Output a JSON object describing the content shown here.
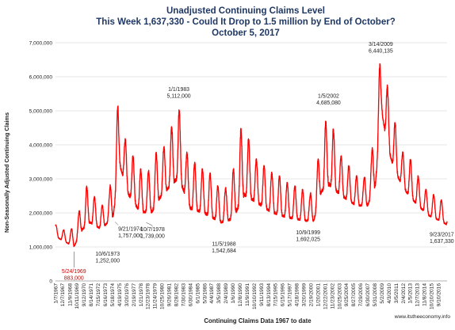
{
  "chart_data": {
    "type": "line",
    "title": "Unadjusted Continuing Claims Level",
    "subtitle": "This Week 1,637,330 - Could It Drop to 1.5 million by End of October?",
    "date_line": "October 5, 2017",
    "ylabel": "Non-Seasonally Adjusted Continuing Claims",
    "xlabel": "Continuing Claims Data 1967 to date",
    "source": "www.itstheeconomy.info",
    "ylim": [
      0,
      7000000
    ],
    "y_ticks": [
      "0",
      "1,000,000",
      "2,000,000",
      "3,000,000",
      "4,000,000",
      "5,000,000",
      "6,000,000",
      "7,000,000"
    ],
    "grid": true,
    "legend": "none",
    "line_color": "#ff0000",
    "x_range": [
      1967.0,
      2017.8
    ],
    "x_ticks": [
      "1/7/1967",
      "12/7/1967",
      "11/9/1968",
      "10/11/1969",
      "9/12/1970",
      "8/14/1971",
      "7/15/1972",
      "6/16/1973",
      "5/18/1974",
      "4/19/1975",
      "3/20/1976",
      "2/19/1977",
      "1/21/1978",
      "12/23/1978",
      "11/24/1979",
      "10/25/1980",
      "9/26/1981",
      "8/28/1982",
      "7/30/1983",
      "6/30/1984",
      "6/1/1985",
      "5/3/1986",
      "4/4/1987",
      "3/5/1988",
      "2/4/1989",
      "1/6/1990",
      "12/8/1990",
      "11/9/1991",
      "10/10/1992",
      "9/11/1993",
      "8/13/1994",
      "7/15/1995",
      "6/15/1996",
      "5/17/1997",
      "4/18/1998",
      "3/20/1999",
      "2/19/2000",
      "1/20/2001",
      "12/22/2001",
      "11/23/2002",
      "10/25/2003",
      "9/25/2004",
      "8/27/2005",
      "7/29/2006",
      "6/30/2007",
      "5/31/2008",
      "5/2/2009",
      "4/3/2010",
      "3/5/2011",
      "2/4/2012",
      "1/5/2013",
      "12/7/2013",
      "11/8/2014",
      "10/10/2015",
      "9/10/2016"
    ],
    "x_tick_years": [
      1967.02,
      1967.93,
      1968.86,
      1969.78,
      1970.7,
      1971.62,
      1972.54,
      1973.46,
      1974.38,
      1975.3,
      1976.22,
      1977.14,
      1978.06,
      1978.98,
      1979.9,
      1980.82,
      1981.74,
      1982.66,
      1983.58,
      1984.5,
      1985.42,
      1986.34,
      1987.26,
      1988.18,
      1989.1,
      1990.02,
      1990.94,
      1991.86,
      1992.78,
      1993.7,
      1994.62,
      1995.54,
      1996.46,
      1997.38,
      1998.3,
      1999.22,
      2000.14,
      2001.06,
      2001.98,
      2002.9,
      2003.82,
      2004.74,
      2005.66,
      2006.58,
      2007.5,
      2008.42,
      2009.34,
      2010.26,
      2011.18,
      2012.1,
      2013.02,
      2013.94,
      2014.86,
      2015.78,
      2016.7
    ],
    "trough_profile": [
      [
        1967.0,
        1300000
      ],
      [
        1969.4,
        1000000
      ],
      [
        1970.5,
        1500000
      ],
      [
        1971.5,
        1700000
      ],
      [
        1973.0,
        1500000
      ],
      [
        1974.5,
        1900000
      ],
      [
        1975.3,
        3400000
      ],
      [
        1976.5,
        2500000
      ],
      [
        1978.0,
        2000000
      ],
      [
        1979.5,
        2000000
      ],
      [
        1980.5,
        2400000
      ],
      [
        1982.0,
        2800000
      ],
      [
        1983.0,
        3000000
      ],
      [
        1984.5,
        2100000
      ],
      [
        1986.0,
        2000000
      ],
      [
        1988.5,
        1700000
      ],
      [
        1990.0,
        1800000
      ],
      [
        1991.5,
        2500000
      ],
      [
        1993.0,
        2300000
      ],
      [
        1995.0,
        2000000
      ],
      [
        1997.0,
        1850000
      ],
      [
        1999.5,
        1750000
      ],
      [
        2000.5,
        1750000
      ],
      [
        2001.5,
        2600000
      ],
      [
        2002.5,
        2800000
      ],
      [
        2004.0,
        2500000
      ],
      [
        2006.0,
        2200000
      ],
      [
        2007.5,
        2200000
      ],
      [
        2008.5,
        2800000
      ],
      [
        2009.3,
        5000000
      ],
      [
        2010.0,
        4000000
      ],
      [
        2011.0,
        3200000
      ],
      [
        2012.5,
        2600000
      ],
      [
        2014.0,
        2200000
      ],
      [
        2015.5,
        1900000
      ],
      [
        2017.0,
        1750000
      ],
      [
        2017.8,
        1640000
      ]
    ],
    "peak_profile": [
      [
        1967.0,
        1650000
      ],
      [
        1968.0,
        1500000
      ],
      [
        1969.0,
        1500000
      ],
      [
        1970.0,
        2000000
      ],
      [
        1971.0,
        2800000
      ],
      [
        1972.0,
        2500000
      ],
      [
        1973.0,
        2200000
      ],
      [
        1974.0,
        2600000
      ],
      [
        1975.1,
        5200000
      ],
      [
        1976.0,
        4200000
      ],
      [
        1977.0,
        3700000
      ],
      [
        1978.0,
        3300000
      ],
      [
        1979.0,
        3200000
      ],
      [
        1980.1,
        3800000
      ],
      [
        1981.0,
        3900000
      ],
      [
        1982.0,
        4500000
      ],
      [
        1983.0,
        5100000
      ],
      [
        1984.0,
        3800000
      ],
      [
        1985.0,
        3500000
      ],
      [
        1986.0,
        3300000
      ],
      [
        1987.0,
        3200000
      ],
      [
        1988.0,
        2800000
      ],
      [
        1989.0,
        2700000
      ],
      [
        1990.0,
        3200000
      ],
      [
        1991.0,
        4500000
      ],
      [
        1992.0,
        4200000
      ],
      [
        1993.0,
        3600000
      ],
      [
        1994.0,
        3400000
      ],
      [
        1995.0,
        3200000
      ],
      [
        1996.0,
        3100000
      ],
      [
        1997.0,
        2900000
      ],
      [
        1998.0,
        2800000
      ],
      [
        1999.0,
        2700000
      ],
      [
        2000.0,
        2500000
      ],
      [
        2001.0,
        3500000
      ],
      [
        2002.0,
        4700000
      ],
      [
        2003.0,
        4500000
      ],
      [
        2004.0,
        3700000
      ],
      [
        2005.0,
        3400000
      ],
      [
        2006.0,
        3100000
      ],
      [
        2007.0,
        3000000
      ],
      [
        2008.0,
        3700000
      ],
      [
        2009.1,
        6440000
      ],
      [
        2010.0,
        5800000
      ],
      [
        2011.0,
        4700000
      ],
      [
        2012.0,
        3800000
      ],
      [
        2013.0,
        3600000
      ],
      [
        2014.0,
        3100000
      ],
      [
        2015.0,
        2700000
      ],
      [
        2016.0,
        2550000
      ],
      [
        2017.0,
        2400000
      ],
      [
        2017.8,
        2200000
      ]
    ],
    "annotations": [
      {
        "date": "5/24/1969",
        "value_text": "883,000",
        "x": 1969.39,
        "y": 883000,
        "color": "#cc0000"
      },
      {
        "date": "10/6/1973",
        "value_text": "1,252,000",
        "x": 1973.76,
        "y": 1252000,
        "color": "#222222"
      },
      {
        "date": "9/21/1974",
        "value_text": "1,757,000",
        "x": 1974.72,
        "y": 1757000,
        "color": "#222222"
      },
      {
        "date": "10/7/1978",
        "value_text": "1,739,000",
        "x": 1978.77,
        "y": 1739000,
        "color": "#222222"
      },
      {
        "date": "1/1/1983",
        "value_text": "5,112,000",
        "x": 1983.0,
        "y": 5112000,
        "color": "#222222"
      },
      {
        "date": "11/5/1988",
        "value_text": "1,542,684",
        "x": 1988.85,
        "y": 1542684,
        "color": "#222222"
      },
      {
        "date": "10/9/1999",
        "value_text": "1,692,025",
        "x": 1999.77,
        "y": 1692025,
        "color": "#222222"
      },
      {
        "date": "1/5/2002",
        "value_text": "4,685,080",
        "x": 2002.01,
        "y": 4685080,
        "color": "#222222"
      },
      {
        "date": "3/14/2009",
        "value_text": "6,440,135",
        "x": 2009.2,
        "y": 6440135,
        "color": "#222222"
      },
      {
        "date": "9/23/2017",
        "value_text": "1,637,330",
        "x": 2017.73,
        "y": 1637330,
        "color": "#222222"
      }
    ]
  }
}
